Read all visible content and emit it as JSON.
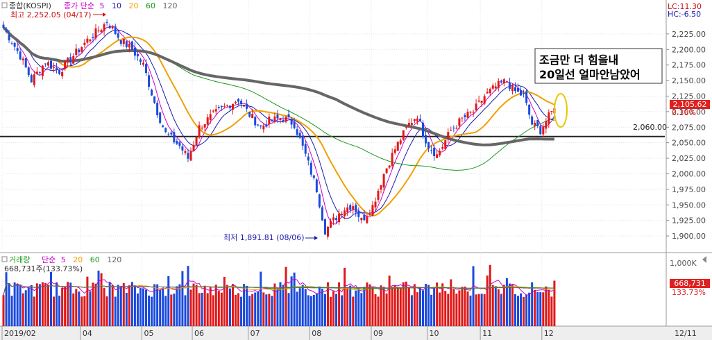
{
  "price_panel": {
    "title": "종합(KOSPI)",
    "ma_legend": {
      "label": "종가 단순",
      "periods": [
        "5",
        "10",
        "20",
        "60",
        "120"
      ],
      "colors": [
        "#cc00cc",
        "#1a1aaa",
        "#f0a000",
        "#1a9a1a",
        "#666666"
      ]
    },
    "high_label": "최고 2,252.05 (04/17)",
    "low_label": "최저 1,891.81 (08/06)",
    "lc": "LC:11.30",
    "hc": "HC:-6.50",
    "hline_value_label": "2,060.00",
    "current_price": "2,105.62",
    "current_change": "0.36%",
    "annotation": [
      "조금만 더 힘을내",
      "20일선 얼마안남았어"
    ]
  },
  "volume_panel": {
    "title": "거래량",
    "ma_legend": {
      "label": "단순",
      "periods": [
        "5",
        "20",
        "60",
        "120"
      ],
      "colors": [
        "#cc00cc",
        "#f0a000",
        "#1a9a1a",
        "#666666"
      ]
    },
    "current_volume": "668,731주(133.73%)",
    "badge_volume": "668,731",
    "badge_ratio": "133.73%",
    "axis_top": "1,000K"
  },
  "x_axis": {
    "labels": [
      "2019/02",
      "04",
      "05",
      "06",
      "07",
      "08",
      "09",
      "10",
      "11",
      "12"
    ],
    "end_label": "12/11"
  },
  "chart_data": {
    "type": "candlestick",
    "title": "종합(KOSPI)",
    "y_ticks": [
      "2,225.00",
      "2,200.00",
      "2,175.00",
      "2,150.00",
      "2,125.00",
      "2,100.00",
      "2,075.00",
      "2,050.00",
      "2,025.00",
      "2,000.00",
      "1,975.00",
      "1,950.00",
      "1,925.00",
      "1,900.00"
    ],
    "ylim": [
      1880,
      2255
    ],
    "hline": 2060,
    "hline_color": "#222222",
    "high": {
      "value": 2252.05,
      "date": "04/17"
    },
    "low": {
      "value": 1891.81,
      "date": "08/06"
    },
    "anchors": [
      {
        "i": 0,
        "v": 2235
      },
      {
        "i": 6,
        "v": 2190
      },
      {
        "i": 10,
        "v": 2150
      },
      {
        "i": 15,
        "v": 2180
      },
      {
        "i": 20,
        "v": 2165
      },
      {
        "i": 25,
        "v": 2190
      },
      {
        "i": 30,
        "v": 2215
      },
      {
        "i": 35,
        "v": 2235
      },
      {
        "i": 37,
        "v": 2245
      },
      {
        "i": 42,
        "v": 2215
      },
      {
        "i": 46,
        "v": 2200
      },
      {
        "i": 50,
        "v": 2175
      },
      {
        "i": 55,
        "v": 2100
      },
      {
        "i": 58,
        "v": 2065
      },
      {
        "i": 63,
        "v": 2045
      },
      {
        "i": 66,
        "v": 2025
      },
      {
        "i": 70,
        "v": 2075
      },
      {
        "i": 75,
        "v": 2095
      },
      {
        "i": 80,
        "v": 2110
      },
      {
        "i": 84,
        "v": 2120
      },
      {
        "i": 88,
        "v": 2095
      },
      {
        "i": 92,
        "v": 2075
      },
      {
        "i": 95,
        "v": 2085
      },
      {
        "i": 100,
        "v": 2090
      },
      {
        "i": 104,
        "v": 2080
      },
      {
        "i": 108,
        "v": 2030
      },
      {
        "i": 112,
        "v": 1975
      },
      {
        "i": 115,
        "v": 1909
      },
      {
        "i": 118,
        "v": 1925
      },
      {
        "i": 121,
        "v": 1942
      },
      {
        "i": 125,
        "v": 1950
      },
      {
        "i": 128,
        "v": 1925
      },
      {
        "i": 132,
        "v": 1948
      },
      {
        "i": 136,
        "v": 2000
      },
      {
        "i": 140,
        "v": 2040
      },
      {
        "i": 145,
        "v": 2080
      },
      {
        "i": 148,
        "v": 2095
      },
      {
        "i": 150,
        "v": 2065
      },
      {
        "i": 152,
        "v": 2045
      },
      {
        "i": 155,
        "v": 2030
      },
      {
        "i": 157,
        "v": 2045
      },
      {
        "i": 160,
        "v": 2070
      },
      {
        "i": 164,
        "v": 2088
      },
      {
        "i": 168,
        "v": 2100
      },
      {
        "i": 172,
        "v": 2125
      },
      {
        "i": 176,
        "v": 2140
      },
      {
        "i": 180,
        "v": 2150
      },
      {
        "i": 182,
        "v": 2135
      },
      {
        "i": 186,
        "v": 2125
      },
      {
        "i": 189,
        "v": 2080
      },
      {
        "i": 192,
        "v": 2070
      },
      {
        "i": 194,
        "v": 2085
      },
      {
        "i": 197,
        "v": 2105.62
      }
    ],
    "volume_ylim": [
      0,
      1000
    ],
    "volume_unit": "K",
    "volume_ma_colors": [
      "#cc00cc",
      "#f0a000",
      "#1a9a1a",
      "#666666"
    ]
  }
}
